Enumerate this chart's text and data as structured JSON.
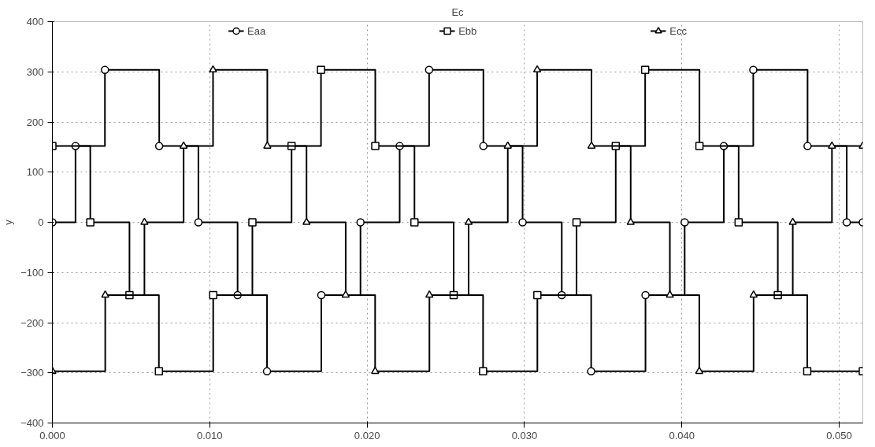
{
  "chart_data": {
    "type": "step",
    "title": "Ec",
    "ylabel": "y",
    "xlim": [
      0,
      0.0515
    ],
    "xticks": [
      {
        "value": 0,
        "label": "0.000"
      },
      {
        "value": 0.01,
        "label": "0.010"
      },
      {
        "value": 0.02,
        "label": "0.020"
      },
      {
        "value": 0.03,
        "label": "0.030"
      },
      {
        "value": 0.04,
        "label": "0.040"
      },
      {
        "value": 0.05,
        "label": "0.050"
      }
    ],
    "ylim": [
      -400,
      400
    ],
    "yticks": [
      -400,
      -300,
      -200,
      -100,
      0,
      100,
      200,
      300,
      400
    ],
    "grid": true,
    "legend": "top",
    "series": [
      {
        "name": "Eaa",
        "color": "#000000",
        "marker": "circle",
        "x": [
          0,
          0.00147,
          0.00334,
          0.00679,
          0.00928,
          0.01177,
          0.01364,
          0.01709,
          0.01958,
          0.02207,
          0.02394,
          0.02739,
          0.02988,
          0.03237,
          0.03424,
          0.03769,
          0.04018,
          0.04267,
          0.04454,
          0.04799,
          0.05048,
          0.0515
        ],
        "values": [
          0,
          152,
          304,
          152,
          0,
          -145,
          -297,
          -145,
          0,
          152,
          304,
          152,
          0,
          -145,
          -297,
          -145,
          0,
          152,
          304,
          152,
          0,
          0
        ]
      },
      {
        "name": "Ebb",
        "color": "#000000",
        "marker": "square",
        "x": [
          0,
          0.00241,
          0.0049,
          0.00677,
          0.01022,
          0.01271,
          0.0152,
          0.01707,
          0.02052,
          0.02301,
          0.0255,
          0.02737,
          0.03082,
          0.03331,
          0.0358,
          0.03767,
          0.04112,
          0.04361,
          0.0461,
          0.04797,
          0.0515
        ],
        "values": [
          152,
          0,
          -145,
          -297,
          -145,
          0,
          152,
          304,
          152,
          0,
          -145,
          -297,
          -145,
          0,
          152,
          304,
          152,
          0,
          -145,
          -297,
          -297
        ]
      },
      {
        "name": "Ecc",
        "color": "#000000",
        "marker": "triangle",
        "x": [
          0,
          0.00336,
          0.00585,
          0.00834,
          0.01021,
          0.01366,
          0.01615,
          0.01864,
          0.02051,
          0.02396,
          0.02645,
          0.02894,
          0.03081,
          0.03426,
          0.03675,
          0.03924,
          0.04111,
          0.04456,
          0.04705,
          0.04954,
          0.0515
        ],
        "values": [
          -297,
          -145,
          0,
          152,
          304,
          152,
          0,
          -145,
          -297,
          -145,
          0,
          152,
          304,
          152,
          0,
          -145,
          -297,
          -145,
          0,
          152,
          152
        ]
      }
    ]
  }
}
